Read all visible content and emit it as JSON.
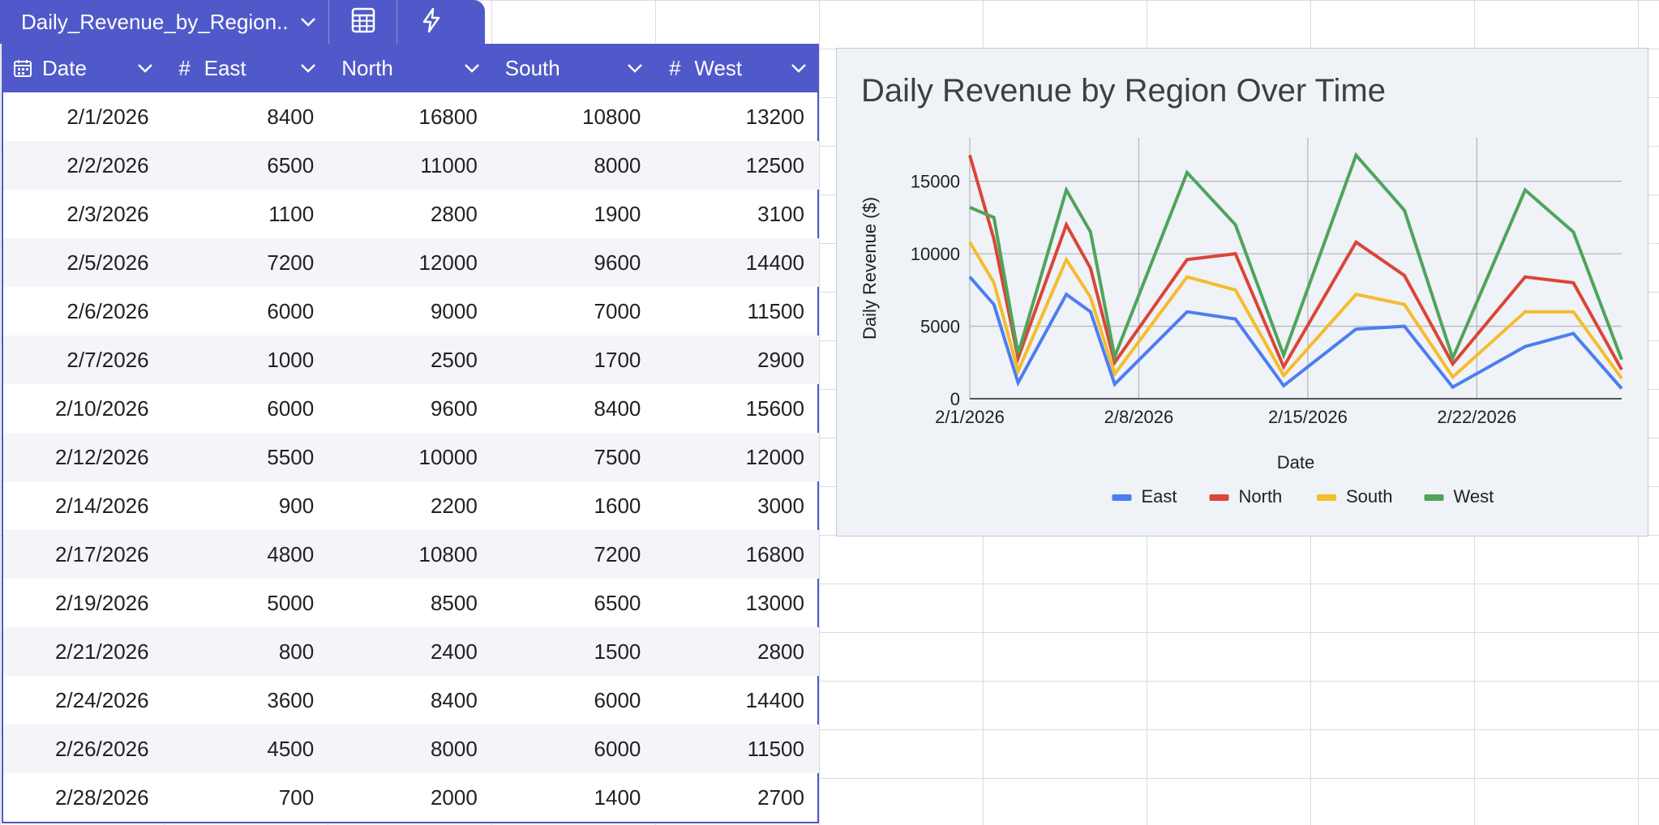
{
  "table_tab": {
    "name": "Daily_Revenue_by_Region..."
  },
  "columns": [
    {
      "label": "Date",
      "icon": "calendar-icon"
    },
    {
      "label": "East",
      "icon": "hash-icon"
    },
    {
      "label": "North",
      "icon": ""
    },
    {
      "label": "South",
      "icon": ""
    },
    {
      "label": "West",
      "icon": "hash-icon"
    }
  ],
  "rows": [
    [
      "2/1/2026",
      "8400",
      "16800",
      "10800",
      "13200"
    ],
    [
      "2/2/2026",
      "6500",
      "11000",
      "8000",
      "12500"
    ],
    [
      "2/3/2026",
      "1100",
      "2800",
      "1900",
      "3100"
    ],
    [
      "2/5/2026",
      "7200",
      "12000",
      "9600",
      "14400"
    ],
    [
      "2/6/2026",
      "6000",
      "9000",
      "7000",
      "11500"
    ],
    [
      "2/7/2026",
      "1000",
      "2500",
      "1700",
      "2900"
    ],
    [
      "2/10/2026",
      "6000",
      "9600",
      "8400",
      "15600"
    ],
    [
      "2/12/2026",
      "5500",
      "10000",
      "7500",
      "12000"
    ],
    [
      "2/14/2026",
      "900",
      "2200",
      "1600",
      "3000"
    ],
    [
      "2/17/2026",
      "4800",
      "10800",
      "7200",
      "16800"
    ],
    [
      "2/19/2026",
      "5000",
      "8500",
      "6500",
      "13000"
    ],
    [
      "2/21/2026",
      "800",
      "2400",
      "1500",
      "2800"
    ],
    [
      "2/24/2026",
      "3600",
      "8400",
      "6000",
      "14400"
    ],
    [
      "2/26/2026",
      "4500",
      "8000",
      "6000",
      "11500"
    ],
    [
      "2/28/2026",
      "700",
      "2000",
      "1400",
      "2700"
    ]
  ],
  "colors": {
    "accent": "#5059c9",
    "East": "#4c7ef0",
    "North": "#db4537",
    "South": "#f5bc2c",
    "West": "#4fa45a"
  },
  "chart_data": {
    "type": "line",
    "title": "Daily Revenue by Region Over Time",
    "xlabel": "Date",
    "ylabel": "Daily Revenue ($)",
    "x": [
      1,
      2,
      3,
      5,
      6,
      7,
      10,
      12,
      14,
      17,
      19,
      21,
      24,
      26,
      28
    ],
    "x_tick_labels": [
      "2/1/2026",
      "2/8/2026",
      "2/15/2026",
      "2/22/2026"
    ],
    "x_tick_days": [
      1,
      8,
      15,
      22
    ],
    "xlim": [
      1,
      28
    ],
    "ylim": [
      0,
      18000
    ],
    "y_ticks": [
      0,
      5000,
      10000,
      15000
    ],
    "y_tick_labels": [
      "0",
      "5000",
      "10000",
      "15000"
    ],
    "grid": true,
    "legend": "bottom",
    "series": [
      {
        "name": "East",
        "values": [
          8400,
          6500,
          1100,
          7200,
          6000,
          1000,
          6000,
          5500,
          900,
          4800,
          5000,
          800,
          3600,
          4500,
          700
        ]
      },
      {
        "name": "North",
        "values": [
          16800,
          11000,
          2800,
          12000,
          9000,
          2500,
          9600,
          10000,
          2200,
          10800,
          8500,
          2400,
          8400,
          8000,
          2000
        ]
      },
      {
        "name": "South",
        "values": [
          10800,
          8000,
          1900,
          9600,
          7000,
          1700,
          8400,
          7500,
          1600,
          7200,
          6500,
          1500,
          6000,
          6000,
          1400
        ]
      },
      {
        "name": "West",
        "values": [
          13200,
          12500,
          3100,
          14400,
          11500,
          2900,
          15600,
          12000,
          3000,
          16800,
          13000,
          2800,
          14400,
          11500,
          2700
        ]
      }
    ]
  }
}
